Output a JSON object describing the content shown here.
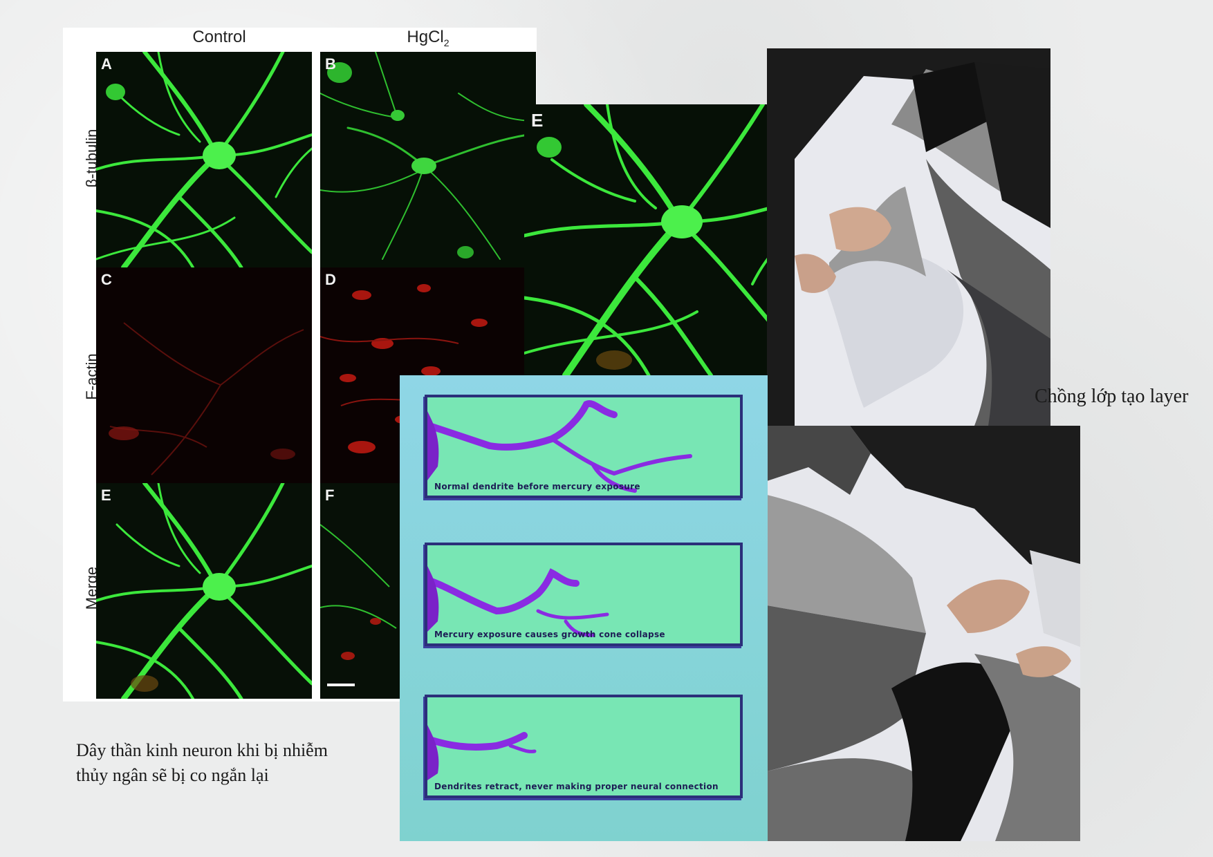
{
  "figure": {
    "columns": [
      "Control",
      "HgCl2"
    ],
    "column_hgcl2": {
      "base": "HgCl",
      "subscript": "2"
    },
    "rows": [
      "β-tubulin",
      "F-actin",
      "Merge"
    ],
    "panels": [
      "A",
      "B",
      "C",
      "D",
      "E",
      "F"
    ],
    "colors": {
      "tubulin": "#39e639",
      "actin": "#c41a12"
    }
  },
  "panel_e_large": {
    "letter": "E"
  },
  "dendrite_illustration": {
    "captions": [
      "Normal dendrite before mercury exposure",
      "Mercury exposure causes growth cone collapse",
      "Dendrites retract, never making proper neural connection"
    ],
    "colors": {
      "box": "#78e6b4",
      "border": "#2b2f7a",
      "dendrite": "#8a2be2"
    }
  },
  "captions": {
    "neuron_line1": "Dây thần kinh neuron khi bị nhiễm",
    "neuron_line2": "thủy ngân sẽ bị co ngắn lại",
    "layer": "Chồng lớp tạo layer"
  }
}
